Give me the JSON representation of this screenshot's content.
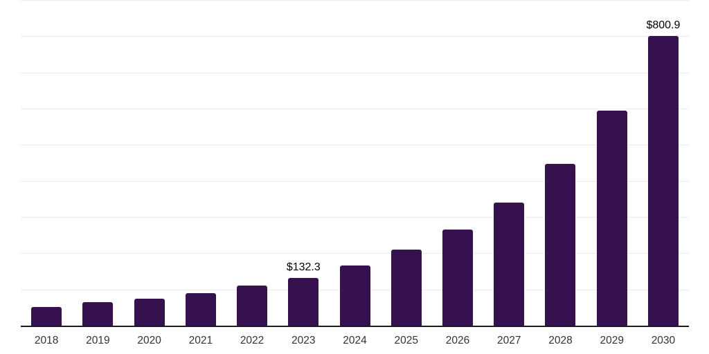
{
  "chart_data": {
    "type": "bar",
    "title": "",
    "xlabel": "",
    "ylabel": "",
    "categories": [
      "2018",
      "2019",
      "2020",
      "2021",
      "2022",
      "2023",
      "2024",
      "2025",
      "2026",
      "2027",
      "2028",
      "2029",
      "2030"
    ],
    "values": [
      51.4,
      64.7,
      74.2,
      89.4,
      110.3,
      132.3,
      165.5,
      209.3,
      266.3,
      340.5,
      447.0,
      593.5,
      800.9
    ],
    "data_labels": {
      "2023": "$132.3",
      "2030": "$800.9"
    },
    "labeled_categories": [
      "2023",
      "2030"
    ],
    "ylim": [
      0,
      900
    ],
    "gridline_step": 100,
    "grid": "horizontal-only",
    "legend": "none",
    "y_axis_tick_labels_visible": false,
    "colors": {
      "bar": "#36114F",
      "gridline": "#ececec",
      "axis_line": "#1a1a1a",
      "tick_label": "#333333",
      "data_label": "#000000",
      "background": "#ffffff"
    }
  }
}
